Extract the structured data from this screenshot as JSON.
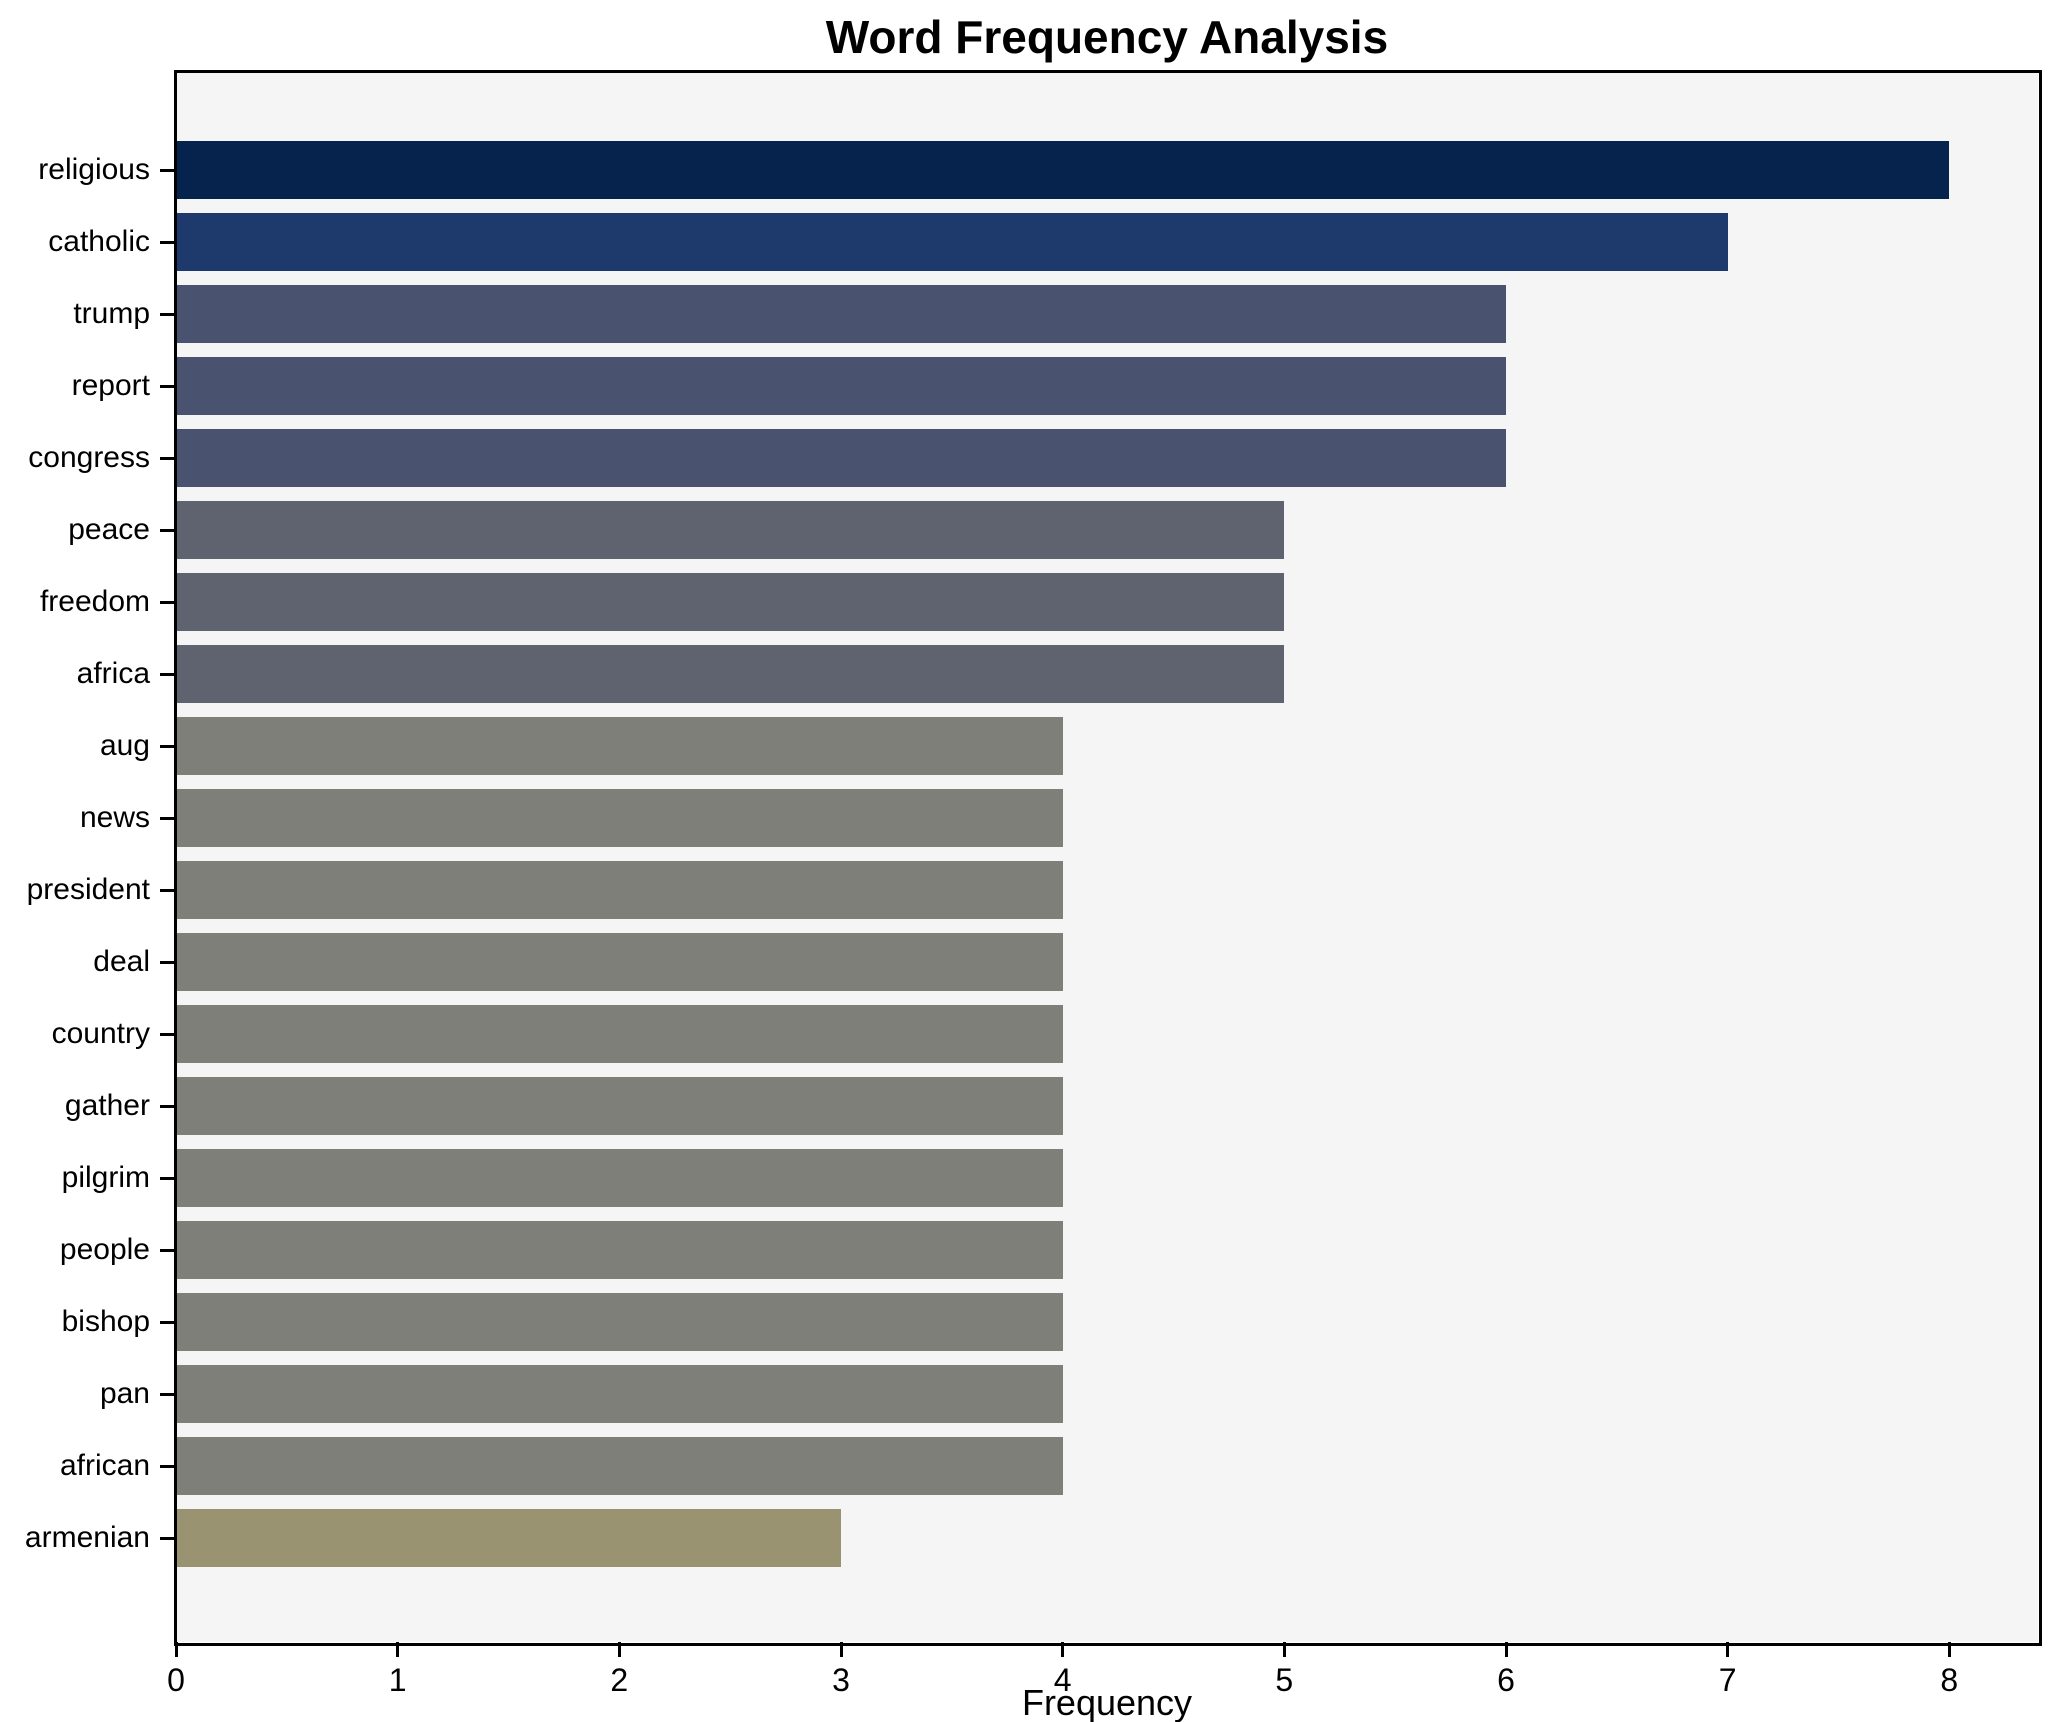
{
  "title": "Word Frequency Analysis",
  "chart_data": {
    "type": "bar",
    "orientation": "horizontal",
    "title": "Word Frequency Analysis",
    "xlabel": "Frequency",
    "ylabel": "",
    "categories": [
      "religious",
      "catholic",
      "trump",
      "report",
      "congress",
      "peace",
      "freedom",
      "africa",
      "aug",
      "news",
      "president",
      "deal",
      "country",
      "gather",
      "pilgrim",
      "people",
      "bishop",
      "pan",
      "african",
      "armenian"
    ],
    "values": [
      8,
      7,
      6,
      6,
      6,
      5,
      5,
      5,
      4,
      4,
      4,
      4,
      4,
      4,
      4,
      4,
      4,
      4,
      4,
      3
    ],
    "bar_colors": [
      "#05234c",
      "#1e3a6c",
      "#49536f",
      "#49536f",
      "#49536f",
      "#5f636f",
      "#5f636f",
      "#5f636f",
      "#7f7f7a",
      "#7f7f7a",
      "#7f7f7a",
      "#7f7f7a",
      "#7f7f7a",
      "#7f7f7a",
      "#7f7f7a",
      "#7f7f7a",
      "#7f7f7a",
      "#7f7f7a",
      "#7f7f7a",
      "#999371"
    ],
    "xticks": [
      0,
      1,
      2,
      3,
      4,
      5,
      6,
      7,
      8
    ],
    "xlim": [
      0,
      8.4
    ],
    "grid": false,
    "legend_position": "none",
    "plot_background": "#f5f5f6",
    "figure_background": "#ffffff",
    "axis_color": "#000000"
  }
}
